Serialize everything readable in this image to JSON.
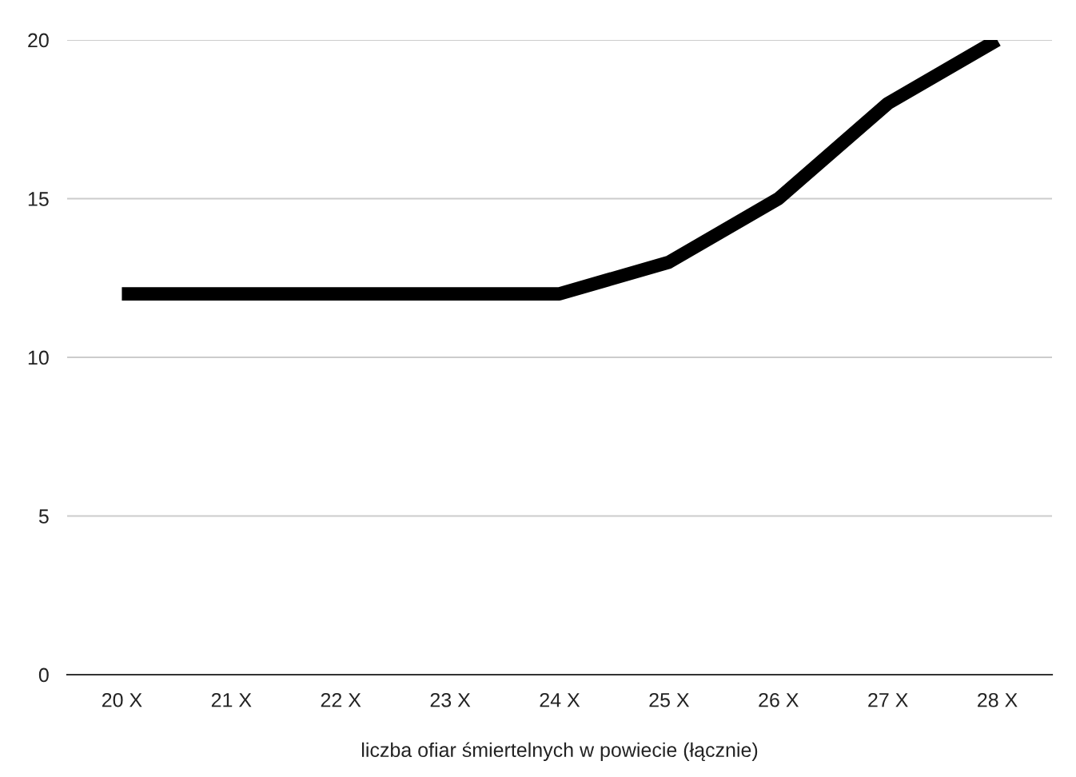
{
  "chart_data": {
    "type": "line",
    "xlabel": "liczba ofiar śmiertelnych w powiecie (łącznie)",
    "categories": [
      "20 X",
      "21 X",
      "22 X",
      "23 X",
      "24 X",
      "25 X",
      "26 X",
      "27 X",
      "28 X"
    ],
    "series": [
      {
        "color": "#000000",
        "values": [
          12,
          12,
          12,
          12,
          12,
          13,
          15,
          18,
          20
        ]
      }
    ],
    "ylim": [
      0,
      20
    ],
    "yticks": [
      0,
      5,
      10,
      15,
      20
    ],
    "grid": "y"
  }
}
